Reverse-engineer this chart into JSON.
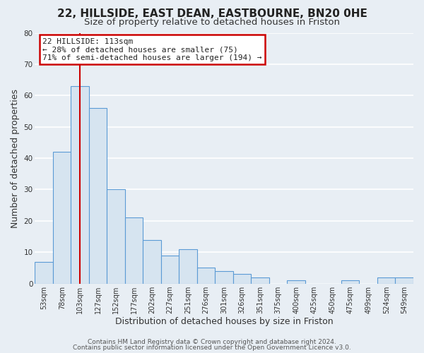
{
  "title_line1": "22, HILLSIDE, EAST DEAN, EASTBOURNE, BN20 0HE",
  "title_line2": "Size of property relative to detached houses in Friston",
  "xlabel": "Distribution of detached houses by size in Friston",
  "ylabel": "Number of detached properties",
  "categories": [
    "53sqm",
    "78sqm",
    "103sqm",
    "127sqm",
    "152sqm",
    "177sqm",
    "202sqm",
    "227sqm",
    "251sqm",
    "276sqm",
    "301sqm",
    "326sqm",
    "351sqm",
    "375sqm",
    "400sqm",
    "425sqm",
    "450sqm",
    "475sqm",
    "499sqm",
    "524sqm",
    "549sqm"
  ],
  "values": [
    7,
    42,
    63,
    56,
    30,
    21,
    14,
    9,
    11,
    5,
    4,
    3,
    2,
    0,
    1,
    0,
    0,
    1,
    0,
    2,
    2
  ],
  "bar_color": "#d6e4f0",
  "bar_edgecolor": "#5b9bd5",
  "highlight_index": 2,
  "vline_color": "#cc0000",
  "ylim": [
    0,
    80
  ],
  "yticks": [
    0,
    10,
    20,
    30,
    40,
    50,
    60,
    70,
    80
  ],
  "annotation_title": "22 HILLSIDE: 113sqm",
  "annotation_line1": "← 28% of detached houses are smaller (75)",
  "annotation_line2": "71% of semi-detached houses are larger (194) →",
  "annotation_box_edgecolor": "#cc0000",
  "footer_line1": "Contains HM Land Registry data © Crown copyright and database right 2024.",
  "footer_line2": "Contains public sector information licensed under the Open Government Licence v3.0.",
  "background_color": "#e8eef4",
  "plot_bg_color": "#e8eef4",
  "grid_color": "#ffffff",
  "title_fontsize": 11,
  "subtitle_fontsize": 9.5,
  "label_fontsize": 9,
  "tick_fontsize": 7,
  "footer_fontsize": 6.5,
  "annotation_fontsize": 8
}
